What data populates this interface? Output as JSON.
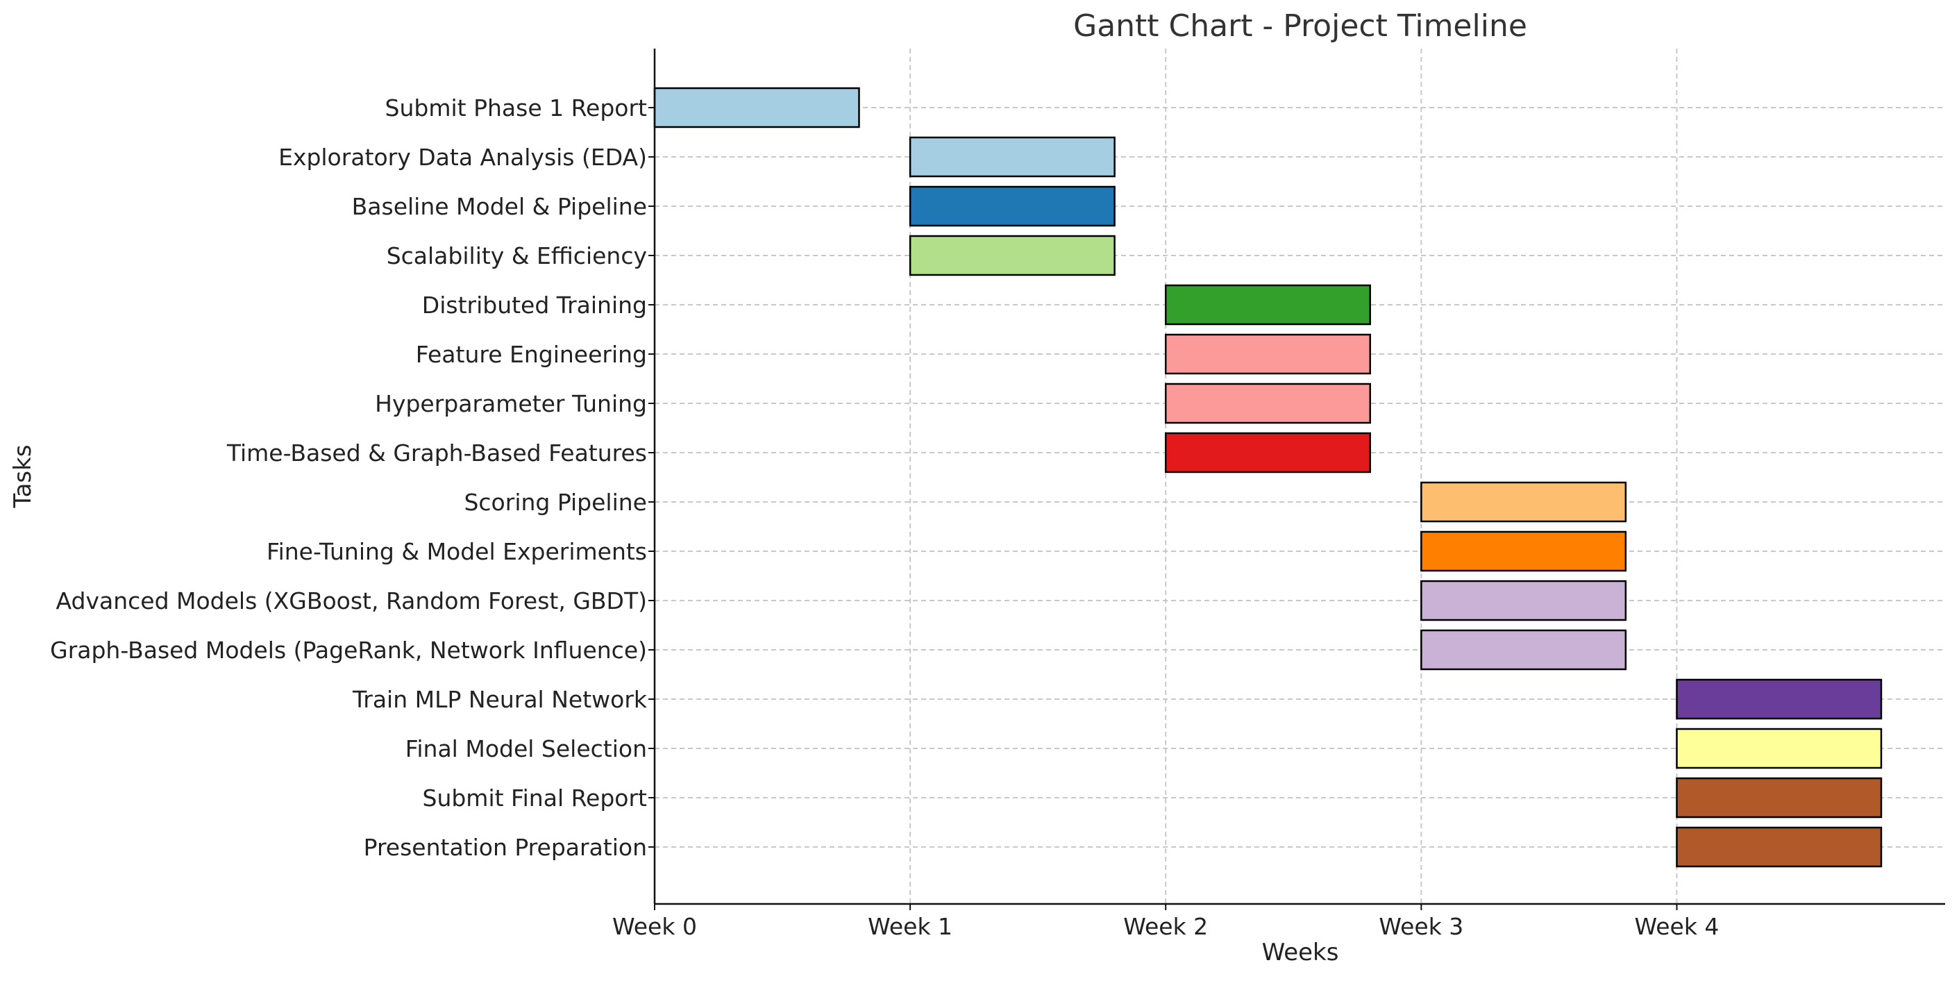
{
  "chart_data": {
    "type": "bar",
    "orientation": "horizontal",
    "style": "gantt",
    "title": "Gantt Chart - Project Timeline",
    "xlabel": "Weeks",
    "ylabel": "Tasks",
    "xlim": [
      0,
      5.05
    ],
    "x_ticks": [
      0,
      1,
      2,
      3,
      4
    ],
    "x_tick_labels": [
      "Week 0",
      "Week 1",
      "Week 2",
      "Week 3",
      "Week 4"
    ],
    "grid": true,
    "tasks": [
      {
        "label": "Submit Phase 1 Report",
        "start": 0,
        "duration": 0.8,
        "color": "#a6cee3"
      },
      {
        "label": "Exploratory Data Analysis (EDA)",
        "start": 1,
        "duration": 0.8,
        "color": "#a6cee3"
      },
      {
        "label": "Baseline Model & Pipeline",
        "start": 1,
        "duration": 0.8,
        "color": "#1f78b4"
      },
      {
        "label": "Scalability & Efficiency",
        "start": 1,
        "duration": 0.8,
        "color": "#b2df8a"
      },
      {
        "label": "Distributed Training",
        "start": 2,
        "duration": 0.8,
        "color": "#33a02c"
      },
      {
        "label": "Feature Engineering",
        "start": 2,
        "duration": 0.8,
        "color": "#fb9a99"
      },
      {
        "label": "Hyperparameter Tuning",
        "start": 2,
        "duration": 0.8,
        "color": "#fb9a99"
      },
      {
        "label": "Time-Based & Graph-Based Features",
        "start": 2,
        "duration": 0.8,
        "color": "#e31a1c"
      },
      {
        "label": "Scoring Pipeline",
        "start": 3,
        "duration": 0.8,
        "color": "#fdbf6f"
      },
      {
        "label": "Fine-Tuning & Model Experiments",
        "start": 3,
        "duration": 0.8,
        "color": "#ff7f00"
      },
      {
        "label": "Advanced Models (XGBoost, Random Forest, GBDT)",
        "start": 3,
        "duration": 0.8,
        "color": "#cab2d6"
      },
      {
        "label": "Graph-Based Models (PageRank, Network Influence)",
        "start": 3,
        "duration": 0.8,
        "color": "#cab2d6"
      },
      {
        "label": "Train MLP Neural Network",
        "start": 4,
        "duration": 0.8,
        "color": "#6a3d9a"
      },
      {
        "label": "Final Model Selection",
        "start": 4,
        "duration": 0.8,
        "color": "#ffff99"
      },
      {
        "label": "Submit Final Report",
        "start": 4,
        "duration": 0.8,
        "color": "#b15928"
      },
      {
        "label": "Presentation Preparation",
        "start": 4,
        "duration": 0.8,
        "color": "#b15928"
      }
    ]
  }
}
